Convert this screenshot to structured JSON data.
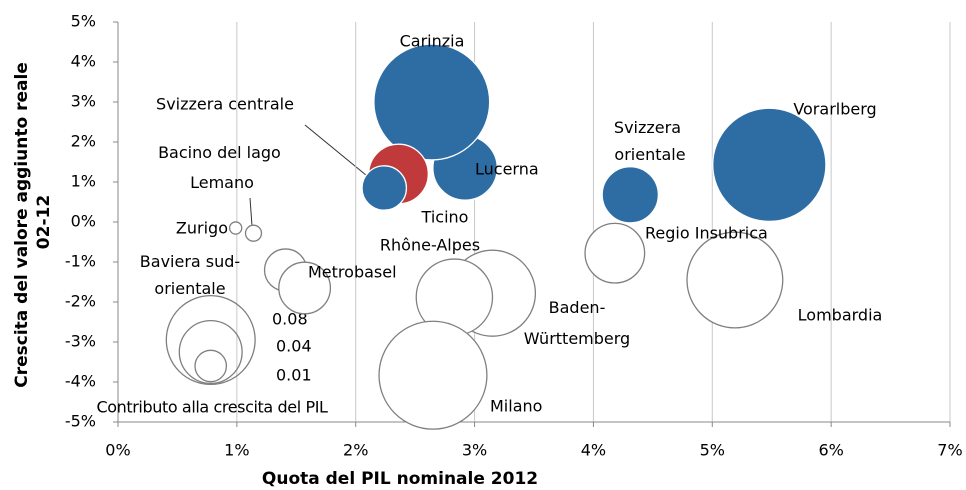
{
  "chart_data": {
    "type": "bubble",
    "xlabel": "Quota del PIL nominale 2012",
    "ylabel": "Crescita del valore aggiunto reale 02-12",
    "xlim": [
      0,
      7
    ],
    "ylim": [
      -5,
      5
    ],
    "xticks": [
      {
        "value": 0,
        "label": "0%"
      },
      {
        "value": 1,
        "label": "1%"
      },
      {
        "value": 2,
        "label": "2%"
      },
      {
        "value": 3,
        "label": "3%"
      },
      {
        "value": 4,
        "label": "4%"
      },
      {
        "value": 5,
        "label": "5%"
      },
      {
        "value": 6,
        "label": "6%"
      },
      {
        "value": 7,
        "label": "7%"
      }
    ],
    "yticks": [
      {
        "value": -5,
        "label": "-5%"
      },
      {
        "value": -4,
        "label": "-4%"
      },
      {
        "value": -3,
        "label": "-3%"
      },
      {
        "value": -2,
        "label": "-2%"
      },
      {
        "value": -1,
        "label": "-1%"
      },
      {
        "value": 0,
        "label": "0%"
      },
      {
        "value": 1,
        "label": "1%"
      },
      {
        "value": 2,
        "label": "2%"
      },
      {
        "value": 3,
        "label": "3%"
      },
      {
        "value": 4,
        "label": "4%"
      },
      {
        "value": 5,
        "label": "5%"
      }
    ],
    "grid": "x",
    "names": [
      "Lucerna",
      "Carinzia",
      "Ticino",
      "Svizzera centrale",
      "Svizzera orientale",
      "Vorarlberg",
      "Zurigo",
      "Bacino del lago Lemano",
      "Baviera sud-orientale",
      "Metrobasel",
      "Baden-Württemberg",
      "Rhône-Alpes",
      "Milano",
      "Regio Insubrica",
      "Lombardia"
    ],
    "x": [
      2.92,
      2.64,
      2.36,
      2.24,
      4.31,
      5.48,
      0.99,
      1.14,
      1.41,
      1.57,
      3.15,
      2.83,
      2.65,
      4.18,
      5.19
    ],
    "y": [
      1.35,
      3.0,
      1.2,
      0.85,
      0.68,
      1.43,
      -0.15,
      -0.28,
      -1.2,
      -1.65,
      -1.78,
      -1.88,
      -3.83,
      -0.78,
      -1.45
    ],
    "sizes": [
      0.042,
      0.136,
      0.036,
      0.02,
      0.032,
      0.13,
      0.0015,
      0.0026,
      0.018,
      0.027,
      0.075,
      0.059,
      0.118,
      0.036,
      0.093
    ],
    "colors": [
      "#2e6da4",
      "#2e6da4",
      "#c0393b",
      "#2e6da4",
      "#2e6da4",
      "#2e6da4",
      "#ffffff",
      "#ffffff",
      "#ffffff",
      "#ffffff",
      "#ffffff",
      "#ffffff",
      "#ffffff",
      "#ffffff",
      "#ffffff"
    ],
    "size_legend": {
      "title": "Contributo alla crescita del PIL",
      "x": 0.78,
      "y": [
        -2.95,
        -3.25,
        -3.6
      ],
      "values": [
        0.08,
        0.04,
        0.01
      ]
    }
  }
}
